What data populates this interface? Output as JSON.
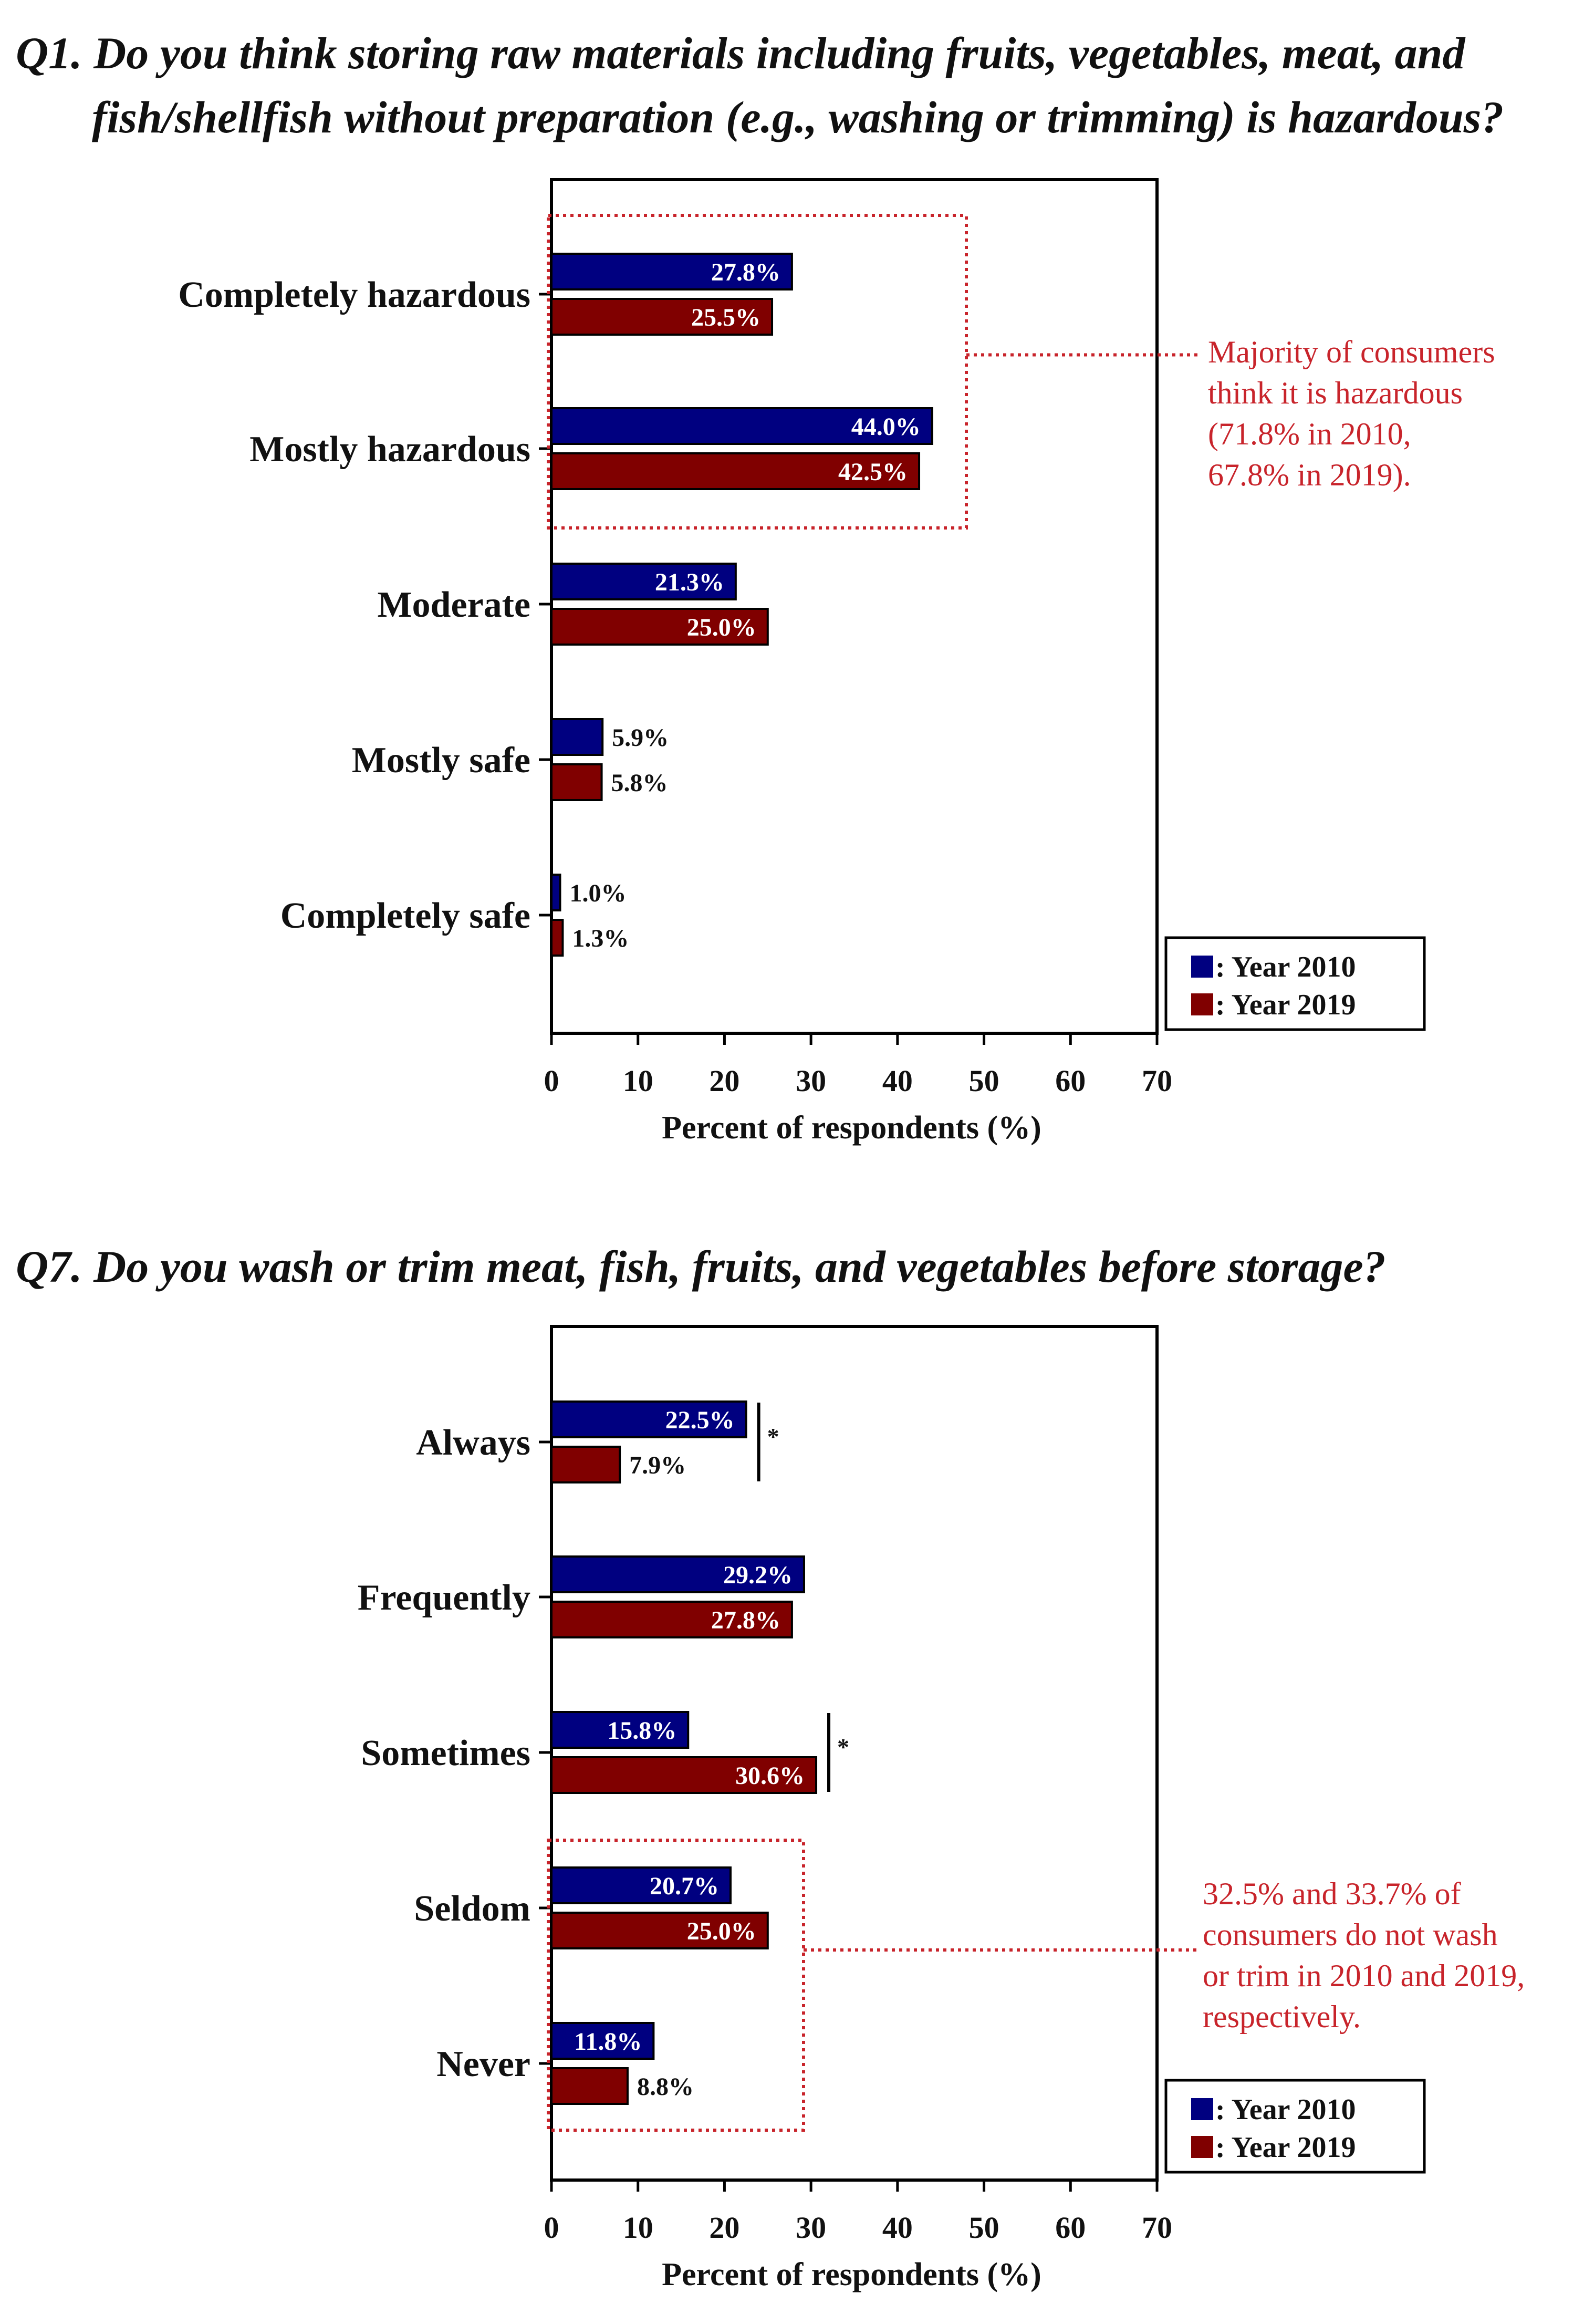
{
  "colors": {
    "year2010": "#000080",
    "year2019": "#800000",
    "annotation": "#c8242b"
  },
  "chart_data": [
    {
      "type": "bar",
      "orientation": "horizontal",
      "title": "Q1. Do you think storing raw materials including fruits, vegetables, meat, and fish/shellfish without preparation (e.g., washing or trimming) is hazardous?",
      "title_lines": [
        "Q1. Do you think storing raw materials including fruits, vegetables, meat, and",
        "fish/shellfish without preparation (e.g., washing or trimming) is hazardous?"
      ],
      "categories": [
        "Completely hazardous",
        "Mostly hazardous",
        "Moderate",
        "Mostly safe",
        "Completely safe"
      ],
      "series": [
        {
          "name": "Year 2010",
          "values": [
            27.8,
            44.0,
            21.3,
            5.9,
            1.0
          ],
          "labels": [
            "27.8%",
            "44.0%",
            "21.3%",
            "5.9%",
            "1.0%"
          ]
        },
        {
          "name": "Year 2019",
          "values": [
            25.5,
            42.5,
            25.0,
            5.8,
            1.3
          ],
          "labels": [
            "25.5%",
            "42.5%",
            "25.0%",
            "5.8%",
            "1.3%"
          ]
        }
      ],
      "xlabel": "Percent of respondents (%)",
      "xlim": [
        0,
        70
      ],
      "xticks": [
        "0",
        "10",
        "20",
        "30",
        "40",
        "50",
        "60",
        "70"
      ],
      "legend": [
        "Year 2010",
        "Year 2019"
      ],
      "legend_labels": [
        ": Year 2010",
        ": Year 2019"
      ],
      "legend_position": "bottom-right",
      "highlight_categories": [
        "Completely hazardous",
        "Mostly hazardous"
      ],
      "annotation_lines": [
        "Majority of consumers",
        "think it is hazardous",
        "(71.8% in 2010,",
        " 67.8% in 2019)."
      ],
      "significance": []
    },
    {
      "type": "bar",
      "orientation": "horizontal",
      "title": "Q7. Do you wash or trim meat, fish, fruits, and vegetables before storage?",
      "title_lines": [
        "Q7. Do you wash or trim meat, fish, fruits, and vegetables before storage?"
      ],
      "categories": [
        "Always",
        "Frequently",
        "Sometimes",
        "Seldom",
        "Never"
      ],
      "series": [
        {
          "name": "Year 2010",
          "values": [
            22.5,
            29.2,
            15.8,
            20.7,
            11.8
          ],
          "labels": [
            "22.5%",
            "29.2%",
            "15.8%",
            "20.7%",
            "11.8%"
          ]
        },
        {
          "name": "Year 2019",
          "values": [
            7.9,
            27.8,
            30.6,
            25.0,
            8.8
          ],
          "labels": [
            "7.9%",
            "27.8%",
            "30.6%",
            "25.0%",
            "8.8%"
          ]
        }
      ],
      "xlabel": "Percent of respondents (%)",
      "xlim": [
        0,
        70
      ],
      "xticks": [
        "0",
        "10",
        "20",
        "30",
        "40",
        "50",
        "60",
        "70"
      ],
      "legend": [
        "Year 2010",
        "Year 2019"
      ],
      "legend_labels": [
        ": Year 2010",
        ": Year 2019"
      ],
      "legend_position": "bottom-right",
      "highlight_categories": [
        "Seldom",
        "Never"
      ],
      "annotation_lines": [
        "32.5% and 33.7% of",
        "consumers do not wash",
        "or trim in 2010 and 2019,",
        "respectively."
      ],
      "significance": [
        {
          "category": "Always",
          "mark": "*"
        },
        {
          "category": "Sometimes",
          "mark": "*"
        }
      ]
    }
  ]
}
